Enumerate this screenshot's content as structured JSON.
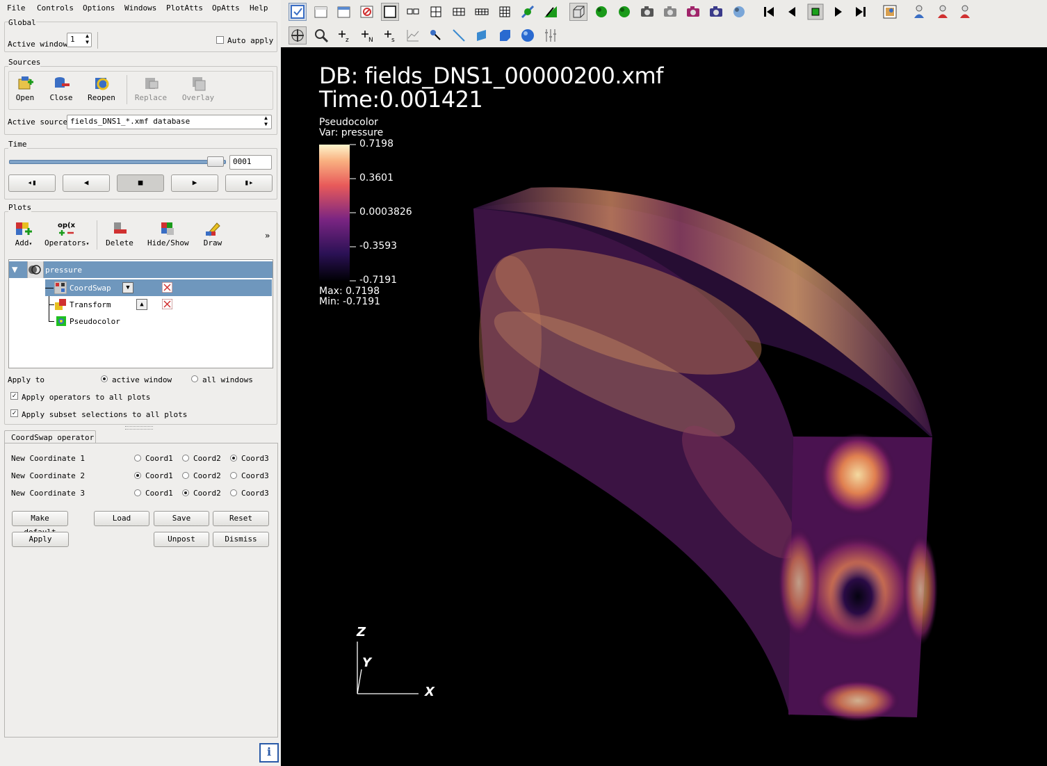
{
  "menu": [
    "File",
    "Controls",
    "Options",
    "Windows",
    "PlotAtts",
    "OpAtts",
    "Help"
  ],
  "global": {
    "title": "Global",
    "active_window_label": "Active window",
    "active_window_value": "1",
    "auto_apply_label": "Auto apply"
  },
  "sources": {
    "title": "Sources",
    "buttons": [
      "Open",
      "Close",
      "Reopen",
      "Replace",
      "Overlay"
    ],
    "active_source_label": "Active source",
    "active_source_value": "fields_DNS1_*.xmf database"
  },
  "time": {
    "title": "Time",
    "value": "0001",
    "slider_fraction": 0.99
  },
  "plots": {
    "title": "Plots",
    "buttons": [
      "Add",
      "Operators",
      "Delete",
      "Hide/Show",
      "Draw"
    ],
    "more": "»",
    "tree": {
      "plot": "pressure",
      "ops": [
        "CoordSwap",
        "Transform"
      ],
      "leaf": "Pseudocolor"
    }
  },
  "apply": {
    "apply_to_label": "Apply to",
    "active_window": "active window",
    "all_windows": "all windows",
    "ops_all": "Apply operators to all plots",
    "subset_all": "Apply subset selections to all plots"
  },
  "coordswap": {
    "tab": "CoordSwap operator",
    "rows": [
      {
        "label": "New Coordinate 1",
        "selected": 3
      },
      {
        "label": "New Coordinate 2",
        "selected": 1
      },
      {
        "label": "New Coordinate 3",
        "selected": 2
      }
    ],
    "options": [
      "Coord1",
      "Coord2",
      "Coord3"
    ],
    "buttons": {
      "make_default": "Make default",
      "load": "Load",
      "save": "Save",
      "reset": "Reset",
      "apply": "Apply",
      "unpost": "Unpost",
      "dismiss": "Dismiss"
    }
  },
  "viewport": {
    "db": "DB: fields_DNS1_00000200.xmf",
    "time": "Time:0.001421",
    "legend": {
      "title": "Pseudocolor",
      "var": "Var: pressure",
      "ticks": [
        "0.7198",
        "0.3601",
        "0.0003826",
        "-0.3593",
        "-0.7191"
      ],
      "max": "Max: 0.7198",
      "min": "Min: -0.7191"
    },
    "axes": {
      "z": "Z",
      "y": "Y",
      "x": "X"
    }
  },
  "colors": {
    "selection": "#6f97bd",
    "viewport_bg": "#000000"
  }
}
